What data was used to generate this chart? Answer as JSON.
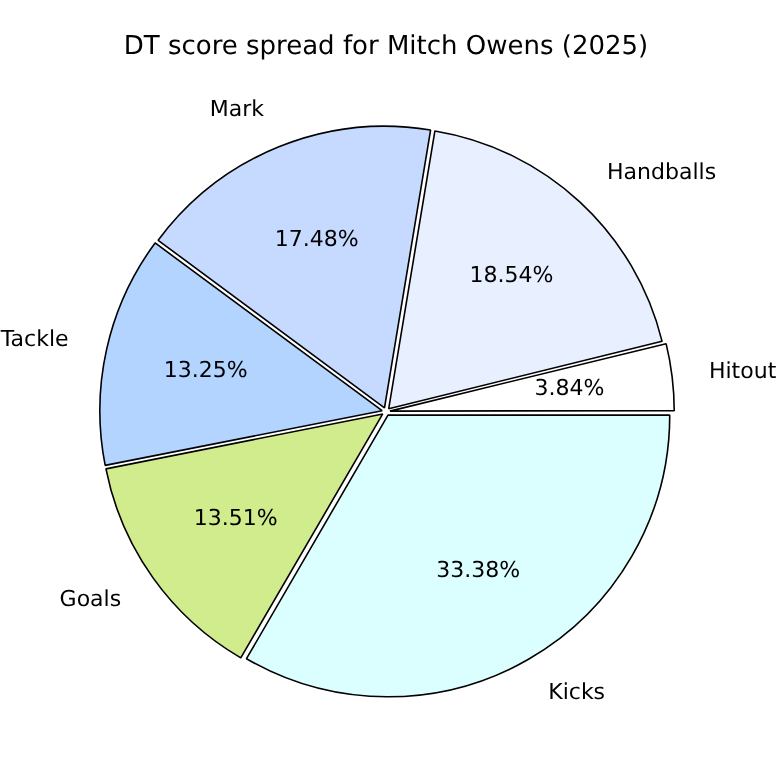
{
  "chart_data": {
    "type": "pie",
    "title": "DT score spread for Mitch Owens (2025)",
    "categories": [
      "Hitout",
      "Handballs",
      "Mark",
      "Tackle",
      "Goals",
      "Kicks"
    ],
    "values": [
      3.84,
      18.54,
      17.48,
      13.25,
      13.51,
      33.38
    ],
    "colors": [
      "#ffffff",
      "#e8f0ff",
      "#c6d9ff",
      "#b3d4ff",
      "#d0ec8c",
      "#dbffff"
    ],
    "value_labels": [
      "3.84%",
      "18.54%",
      "17.48%",
      "13.25%",
      "13.51%",
      "33.38%"
    ],
    "legend": false
  }
}
